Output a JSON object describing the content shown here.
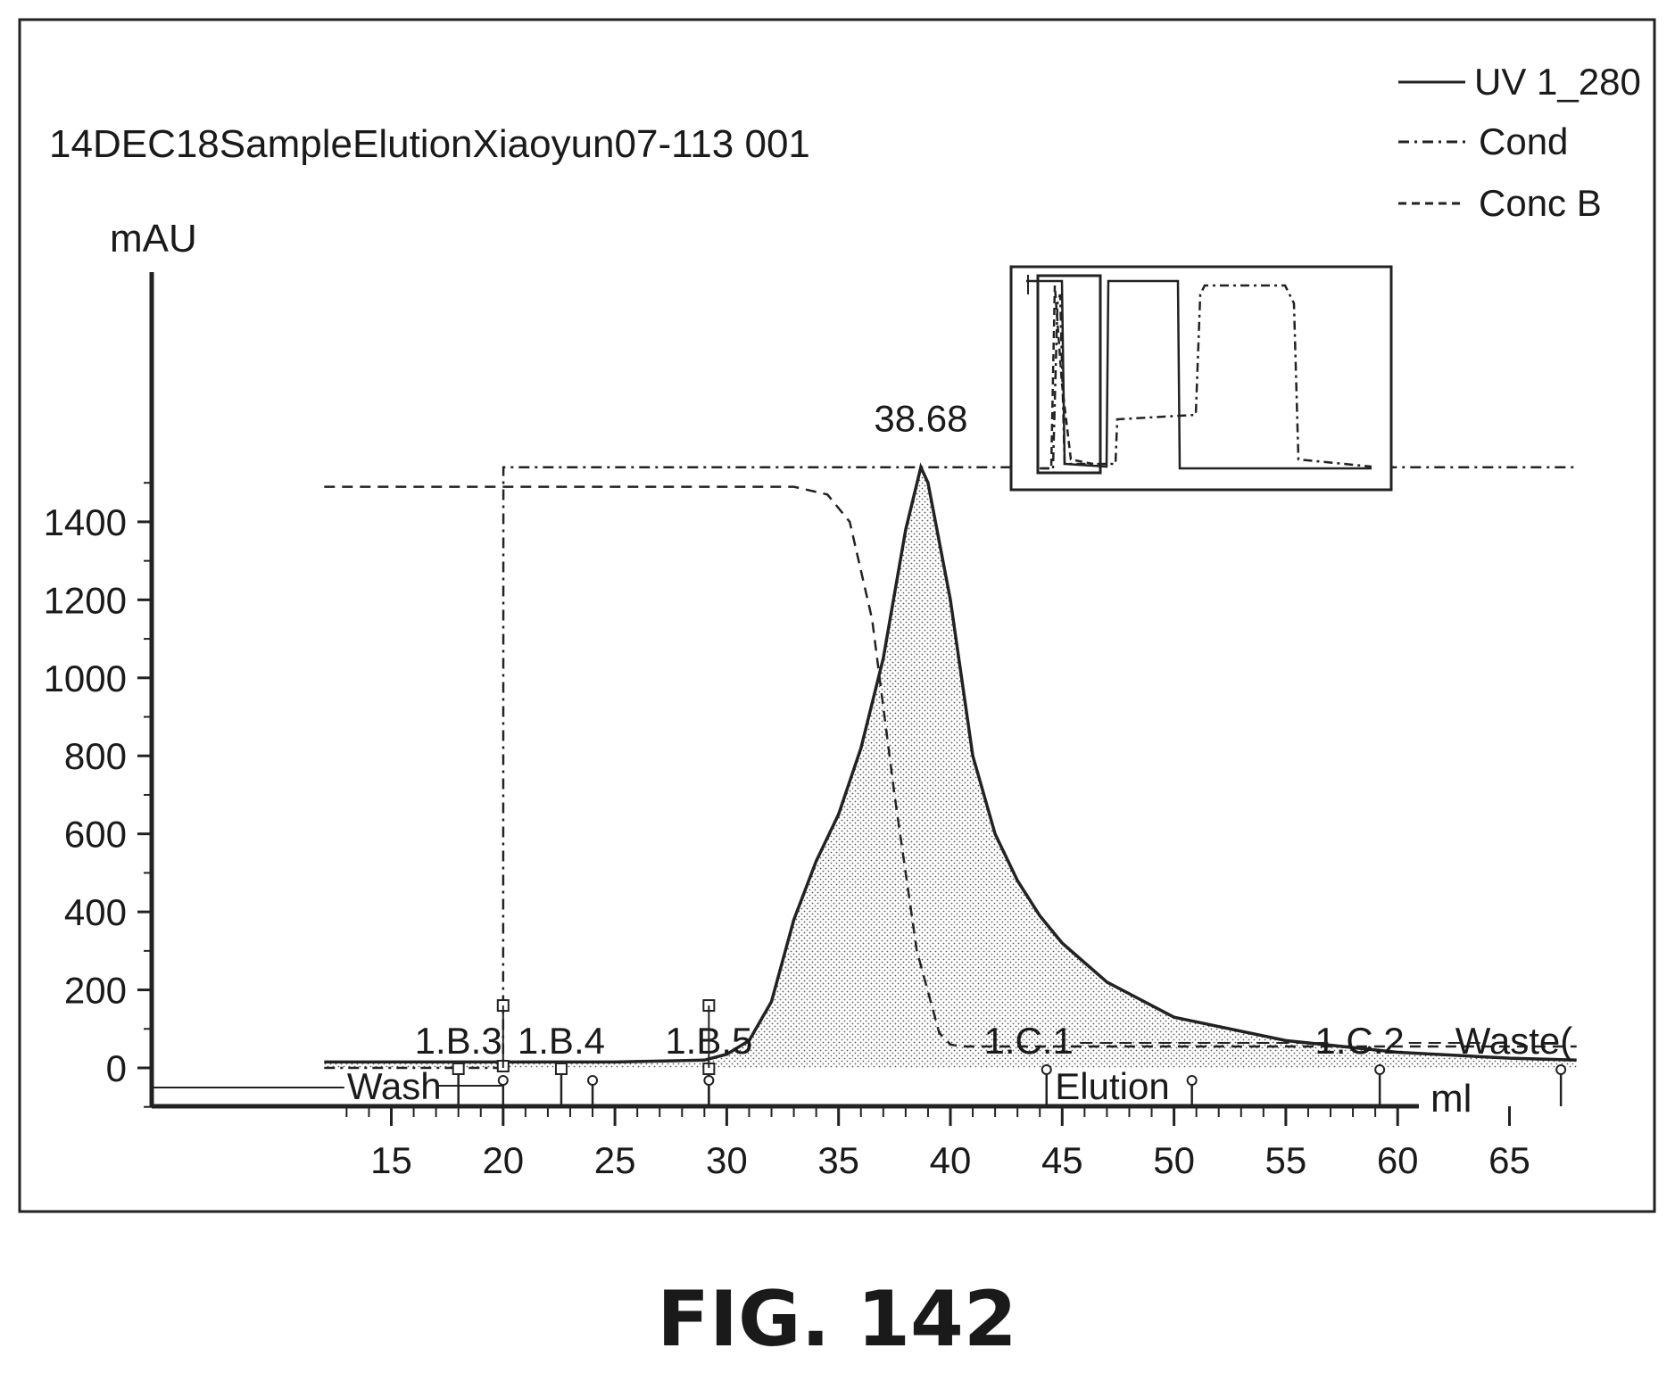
{
  "chart_data": {
    "type": "line",
    "title": "14DEC18SampleElutionXiaoyun07-113 001",
    "xlabel": "ml",
    "ylabel": "mAU",
    "xlim": [
      12,
      68
    ],
    "ylim": [
      -80,
      1620
    ],
    "x_ticks": [
      15,
      20,
      25,
      30,
      35,
      40,
      45,
      50,
      55,
      60,
      65
    ],
    "y_ticks": [
      0,
      200,
      400,
      600,
      800,
      1000,
      1200,
      1400
    ],
    "legend": {
      "position": "top-right",
      "entries": [
        {
          "name": "UV 1_280",
          "style": "solid"
        },
        {
          "name": "Cond",
          "style": "dash-dot"
        },
        {
          "name": "Conc B",
          "style": "dashed"
        }
      ]
    },
    "series": [
      {
        "name": "UV 1_280",
        "style": "solid",
        "fill": "stippled",
        "x": [
          12,
          25,
          29,
          30,
          31,
          32,
          33,
          34,
          35,
          36,
          37,
          38,
          38.68,
          39,
          40,
          41,
          42,
          43,
          44,
          45,
          47,
          50,
          55,
          60,
          65,
          68
        ],
        "y": [
          15,
          15,
          20,
          35,
          70,
          170,
          380,
          530,
          650,
          820,
          1050,
          1380,
          1540,
          1500,
          1200,
          800,
          600,
          480,
          390,
          320,
          220,
          130,
          70,
          40,
          25,
          20
        ]
      },
      {
        "name": "Cond",
        "style": "dash-dot",
        "x": [
          12,
          20,
          20.01,
          68
        ],
        "y": [
          0,
          0,
          1540,
          1540
        ]
      },
      {
        "name": "Conc B",
        "style": "dashed",
        "x": [
          12,
          33,
          34.5,
          35.5,
          36.5,
          37.5,
          38.5,
          39.5,
          40,
          40.5,
          42,
          68
        ],
        "y": [
          1490,
          1490,
          1470,
          1400,
          1150,
          700,
          300,
          90,
          60,
          55,
          55,
          55
        ]
      }
    ],
    "peak_label": {
      "text": "38.68",
      "x": 38.68,
      "y": 1540
    },
    "fractions": [
      {
        "label": "1.B.3",
        "x": 18,
        "label_x": 18
      },
      {
        "label": "1.B.4",
        "x": 22.6,
        "label_x": 22.6
      },
      {
        "label": "1.B.5",
        "x": 29.2,
        "label_x": 29.2
      },
      {
        "label": "1.C.1",
        "x": 44.3,
        "label_x": 43.5
      },
      {
        "label": "1.C.2",
        "x": 59.2,
        "label_x": 58.3
      },
      {
        "label": "Waste(",
        "x": 67.3,
        "label_x": 65.2
      }
    ],
    "events": [
      {
        "label": "Wash",
        "x": 12.3
      },
      {
        "label": "Elution",
        "x": 44.6
      }
    ],
    "event_markers_x": [
      20,
      24,
      29.2,
      50.8
    ]
  },
  "figure_caption": "FIG. 142"
}
